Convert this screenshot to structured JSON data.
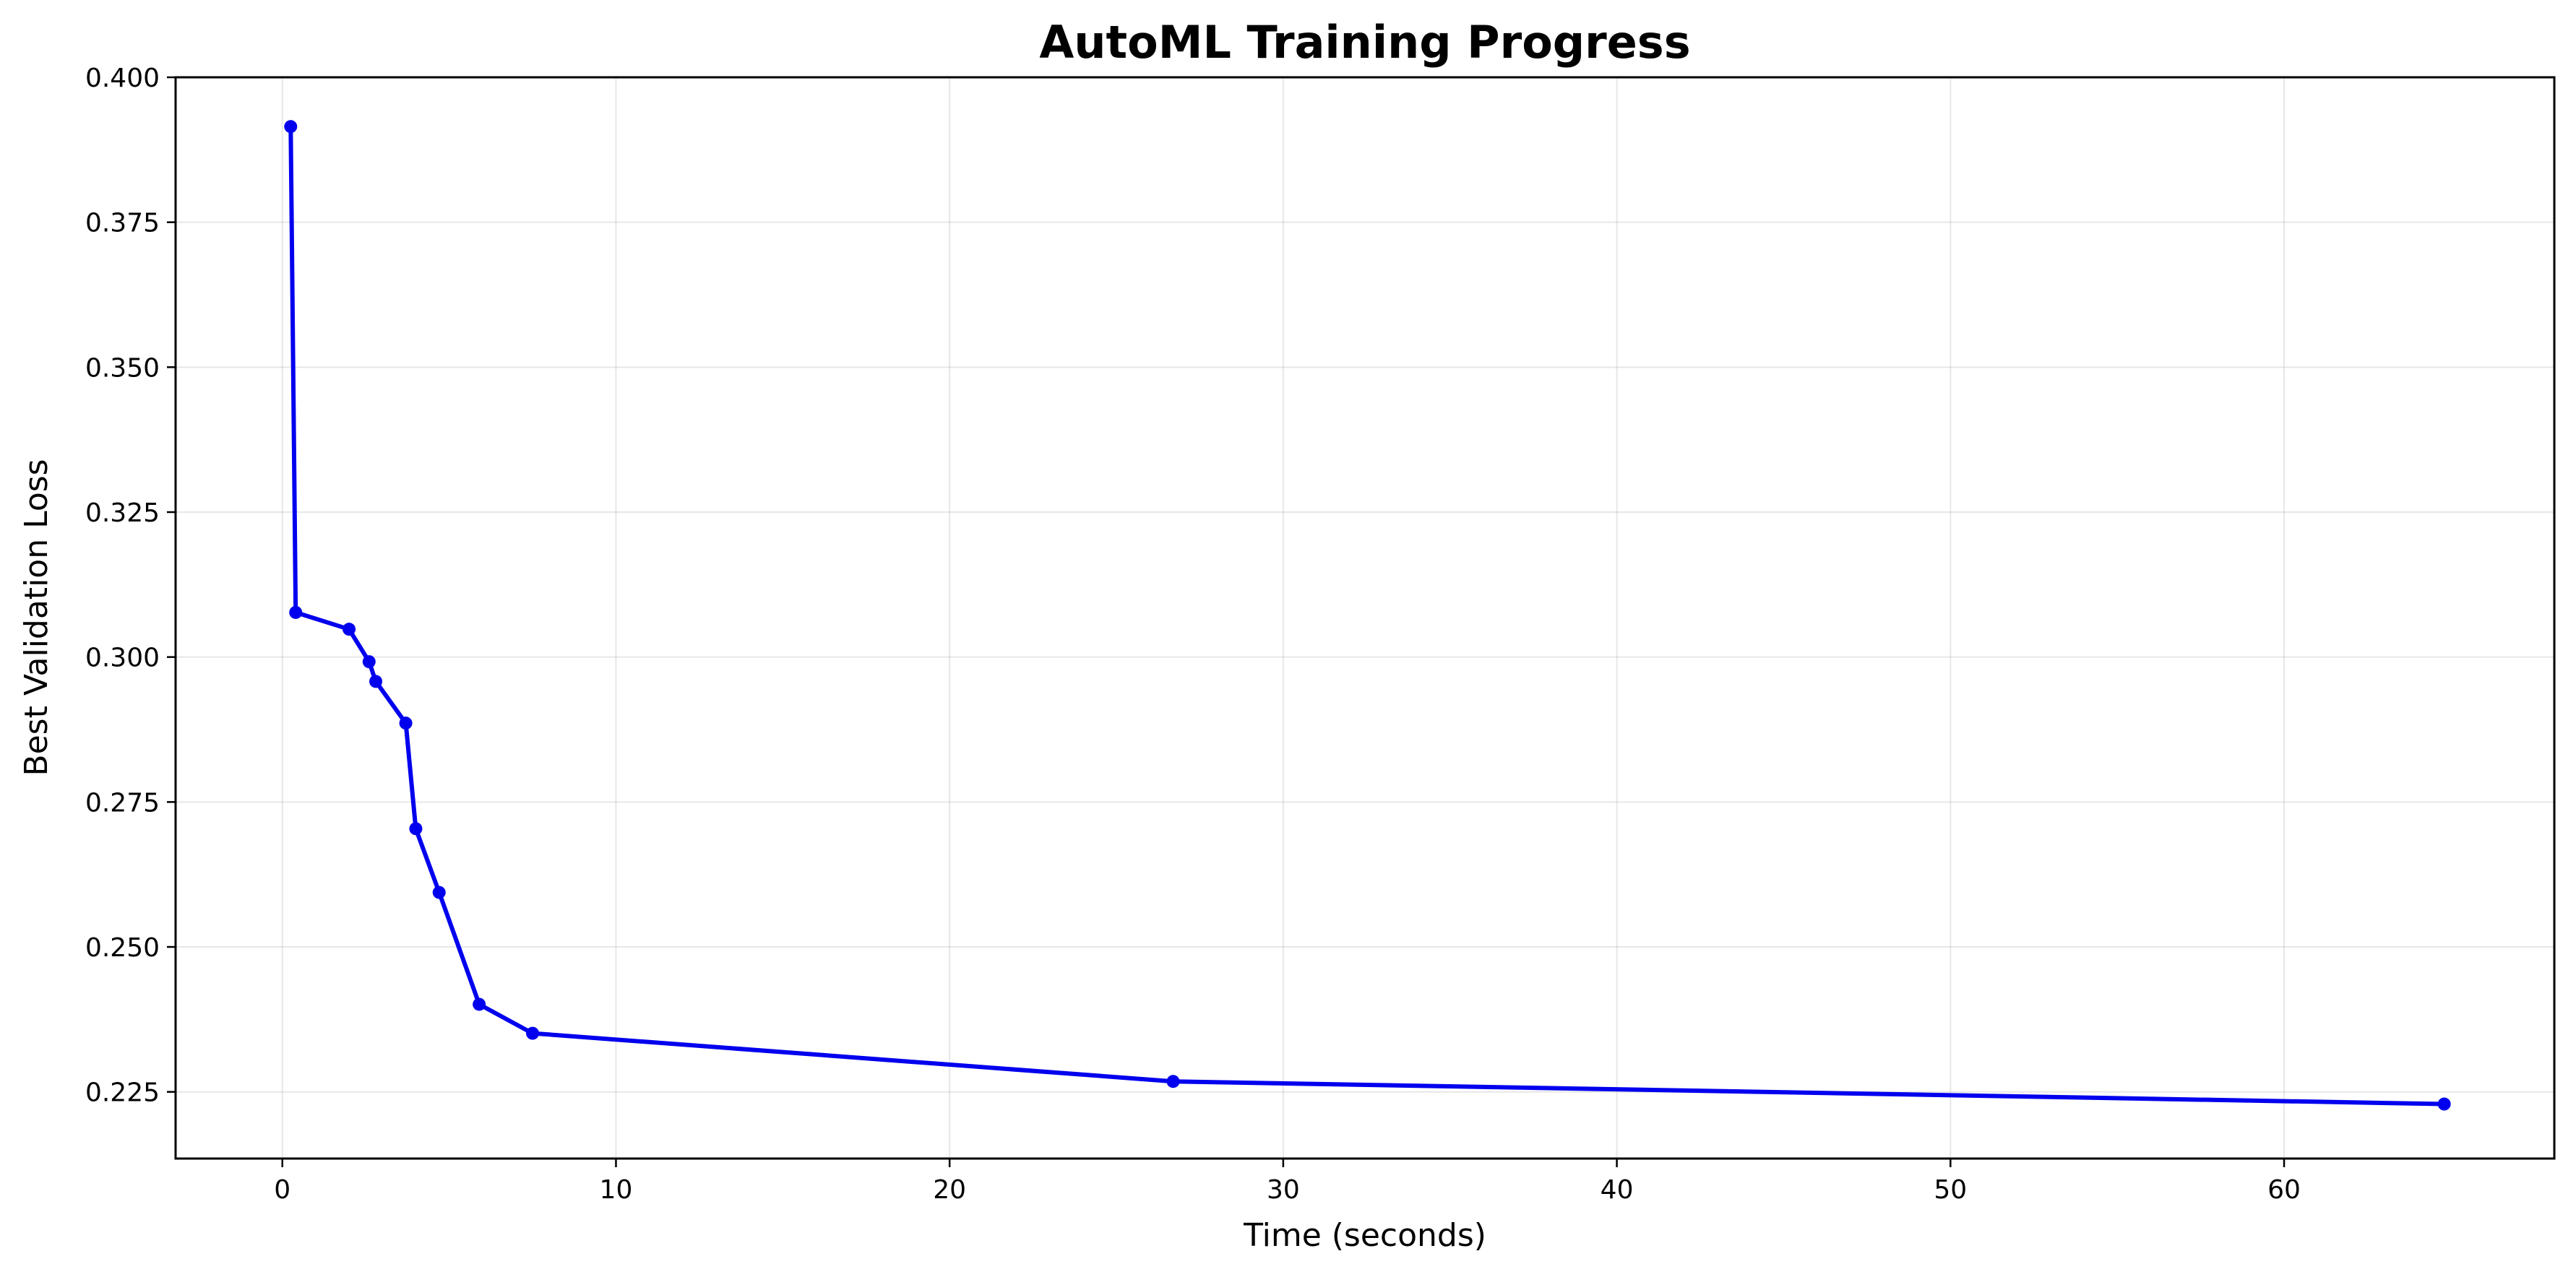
{
  "chart_data": {
    "type": "line",
    "title": "AutoML Training Progress",
    "xlabel": "Time (seconds)",
    "ylabel": "Best Validation Loss",
    "xlim": [
      -3.2,
      68.1
    ],
    "ylim": [
      0.2135,
      0.4
    ],
    "x_ticks": [
      0,
      10,
      20,
      30,
      40,
      50,
      60
    ],
    "y_ticks": [
      0.225,
      0.25,
      0.275,
      0.3,
      0.325,
      0.35,
      0.375,
      0.4
    ],
    "x_tick_labels": [
      "0",
      "10",
      "20",
      "30",
      "40",
      "50",
      "60"
    ],
    "y_tick_labels": [
      "0.225",
      "0.250",
      "0.275",
      "0.300",
      "0.325",
      "0.350",
      "0.375",
      "0.400"
    ],
    "grid": true,
    "legend": "none",
    "series": [
      {
        "color": "#0000ee",
        "marker": "circle",
        "x": [
          0.25,
          0.4,
          2.0,
          2.6,
          2.8,
          3.7,
          4.0,
          4.7,
          5.9,
          7.5,
          26.7,
          64.8
        ],
        "y": [
          0.3915,
          0.3077,
          0.3048,
          0.2992,
          0.2958,
          0.2886,
          0.2704,
          0.2594,
          0.2401,
          0.2351,
          0.2268,
          0.2229
        ]
      }
    ]
  }
}
